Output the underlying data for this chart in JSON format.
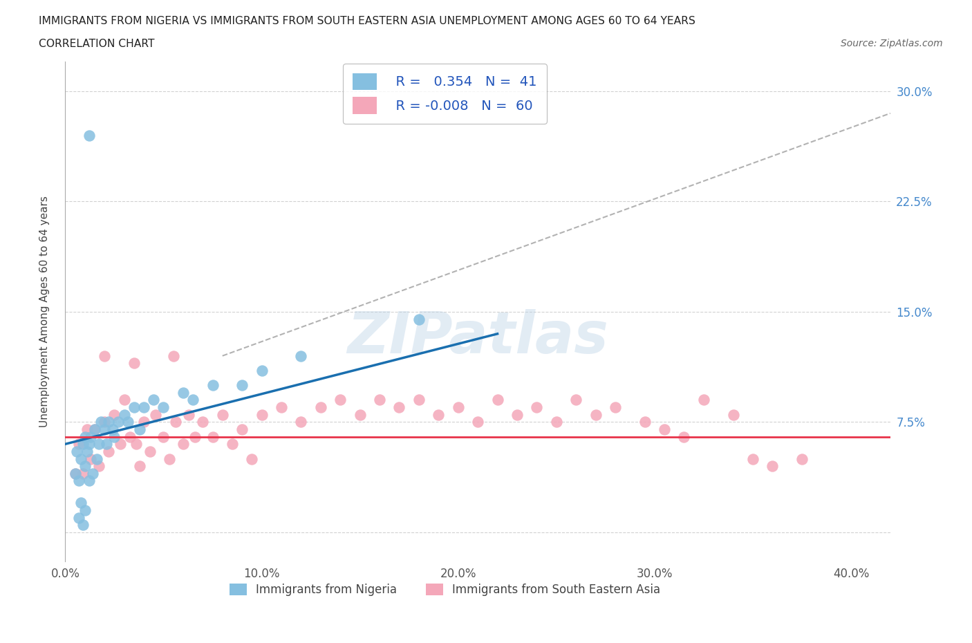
{
  "title_line1": "IMMIGRANTS FROM NIGERIA VS IMMIGRANTS FROM SOUTH EASTERN ASIA UNEMPLOYMENT AMONG AGES 60 TO 64 YEARS",
  "title_line2": "CORRELATION CHART",
  "source_text": "Source: ZipAtlas.com",
  "ylabel": "Unemployment Among Ages 60 to 64 years",
  "xlim": [
    0.0,
    0.42
  ],
  "ylim": [
    -0.02,
    0.32
  ],
  "xticks": [
    0.0,
    0.1,
    0.2,
    0.3,
    0.4
  ],
  "xticklabels": [
    "0.0%",
    "10.0%",
    "20.0%",
    "30.0%",
    "40.0%"
  ],
  "yticks": [
    0.0,
    0.075,
    0.15,
    0.225,
    0.3
  ],
  "yticklabels_right": [
    "",
    "7.5%",
    "15.0%",
    "22.5%",
    "30.0%"
  ],
  "nigeria_color": "#85bfe0",
  "sea_color": "#f4a7b9",
  "nigeria_line_color": "#1a6faf",
  "sea_line_color": "#e8334a",
  "nigeria_R": 0.354,
  "nigeria_N": 41,
  "sea_R": -0.008,
  "sea_N": 60,
  "legend_label_nigeria": "Immigrants from Nigeria",
  "legend_label_sea": "Immigrants from South Eastern Asia",
  "watermark": "ZIPatlas",
  "background_color": "#ffffff",
  "grid_color": "#cccccc",
  "tick_color": "#4488cc",
  "nigeria_x": [
    0.005,
    0.006,
    0.007,
    0.007,
    0.008,
    0.008,
    0.009,
    0.009,
    0.01,
    0.01,
    0.01,
    0.011,
    0.012,
    0.012,
    0.013,
    0.014,
    0.015,
    0.016,
    0.017,
    0.018,
    0.02,
    0.021,
    0.022,
    0.024,
    0.025,
    0.027,
    0.03,
    0.032,
    0.035,
    0.038,
    0.04,
    0.045,
    0.05,
    0.06,
    0.065,
    0.075,
    0.09,
    0.1,
    0.12,
    0.18,
    0.012
  ],
  "nigeria_y": [
    0.04,
    0.055,
    0.035,
    0.01,
    0.05,
    0.02,
    0.06,
    0.005,
    0.065,
    0.045,
    0.015,
    0.055,
    0.06,
    0.035,
    0.065,
    0.04,
    0.07,
    0.05,
    0.06,
    0.075,
    0.07,
    0.06,
    0.075,
    0.07,
    0.065,
    0.075,
    0.08,
    0.075,
    0.085,
    0.07,
    0.085,
    0.09,
    0.085,
    0.095,
    0.09,
    0.1,
    0.1,
    0.11,
    0.12,
    0.145,
    0.27
  ],
  "sea_x": [
    0.005,
    0.007,
    0.009,
    0.011,
    0.013,
    0.015,
    0.017,
    0.02,
    0.022,
    0.025,
    0.028,
    0.03,
    0.033,
    0.036,
    0.038,
    0.04,
    0.043,
    0.046,
    0.05,
    0.053,
    0.056,
    0.06,
    0.063,
    0.066,
    0.07,
    0.075,
    0.08,
    0.085,
    0.09,
    0.095,
    0.1,
    0.11,
    0.12,
    0.13,
    0.14,
    0.15,
    0.16,
    0.17,
    0.18,
    0.19,
    0.2,
    0.21,
    0.22,
    0.23,
    0.24,
    0.25,
    0.26,
    0.27,
    0.28,
    0.295,
    0.305,
    0.315,
    0.325,
    0.34,
    0.35,
    0.36,
    0.02,
    0.035,
    0.055,
    0.375
  ],
  "sea_y": [
    0.04,
    0.06,
    0.04,
    0.07,
    0.05,
    0.07,
    0.045,
    0.075,
    0.055,
    0.08,
    0.06,
    0.09,
    0.065,
    0.06,
    0.045,
    0.075,
    0.055,
    0.08,
    0.065,
    0.05,
    0.075,
    0.06,
    0.08,
    0.065,
    0.075,
    0.065,
    0.08,
    0.06,
    0.07,
    0.05,
    0.08,
    0.085,
    0.075,
    0.085,
    0.09,
    0.08,
    0.09,
    0.085,
    0.09,
    0.08,
    0.085,
    0.075,
    0.09,
    0.08,
    0.085,
    0.075,
    0.09,
    0.08,
    0.085,
    0.075,
    0.07,
    0.065,
    0.09,
    0.08,
    0.05,
    0.045,
    0.12,
    0.115,
    0.12,
    0.05
  ],
  "nigeria_line_x": [
    0.0,
    0.22
  ],
  "nigeria_line_y": [
    0.06,
    0.135
  ],
  "sea_line_x": [
    0.0,
    0.42
  ],
  "sea_line_y": [
    0.065,
    0.065
  ],
  "dash_line_x": [
    0.08,
    0.42
  ],
  "dash_line_y": [
    0.12,
    0.285
  ]
}
